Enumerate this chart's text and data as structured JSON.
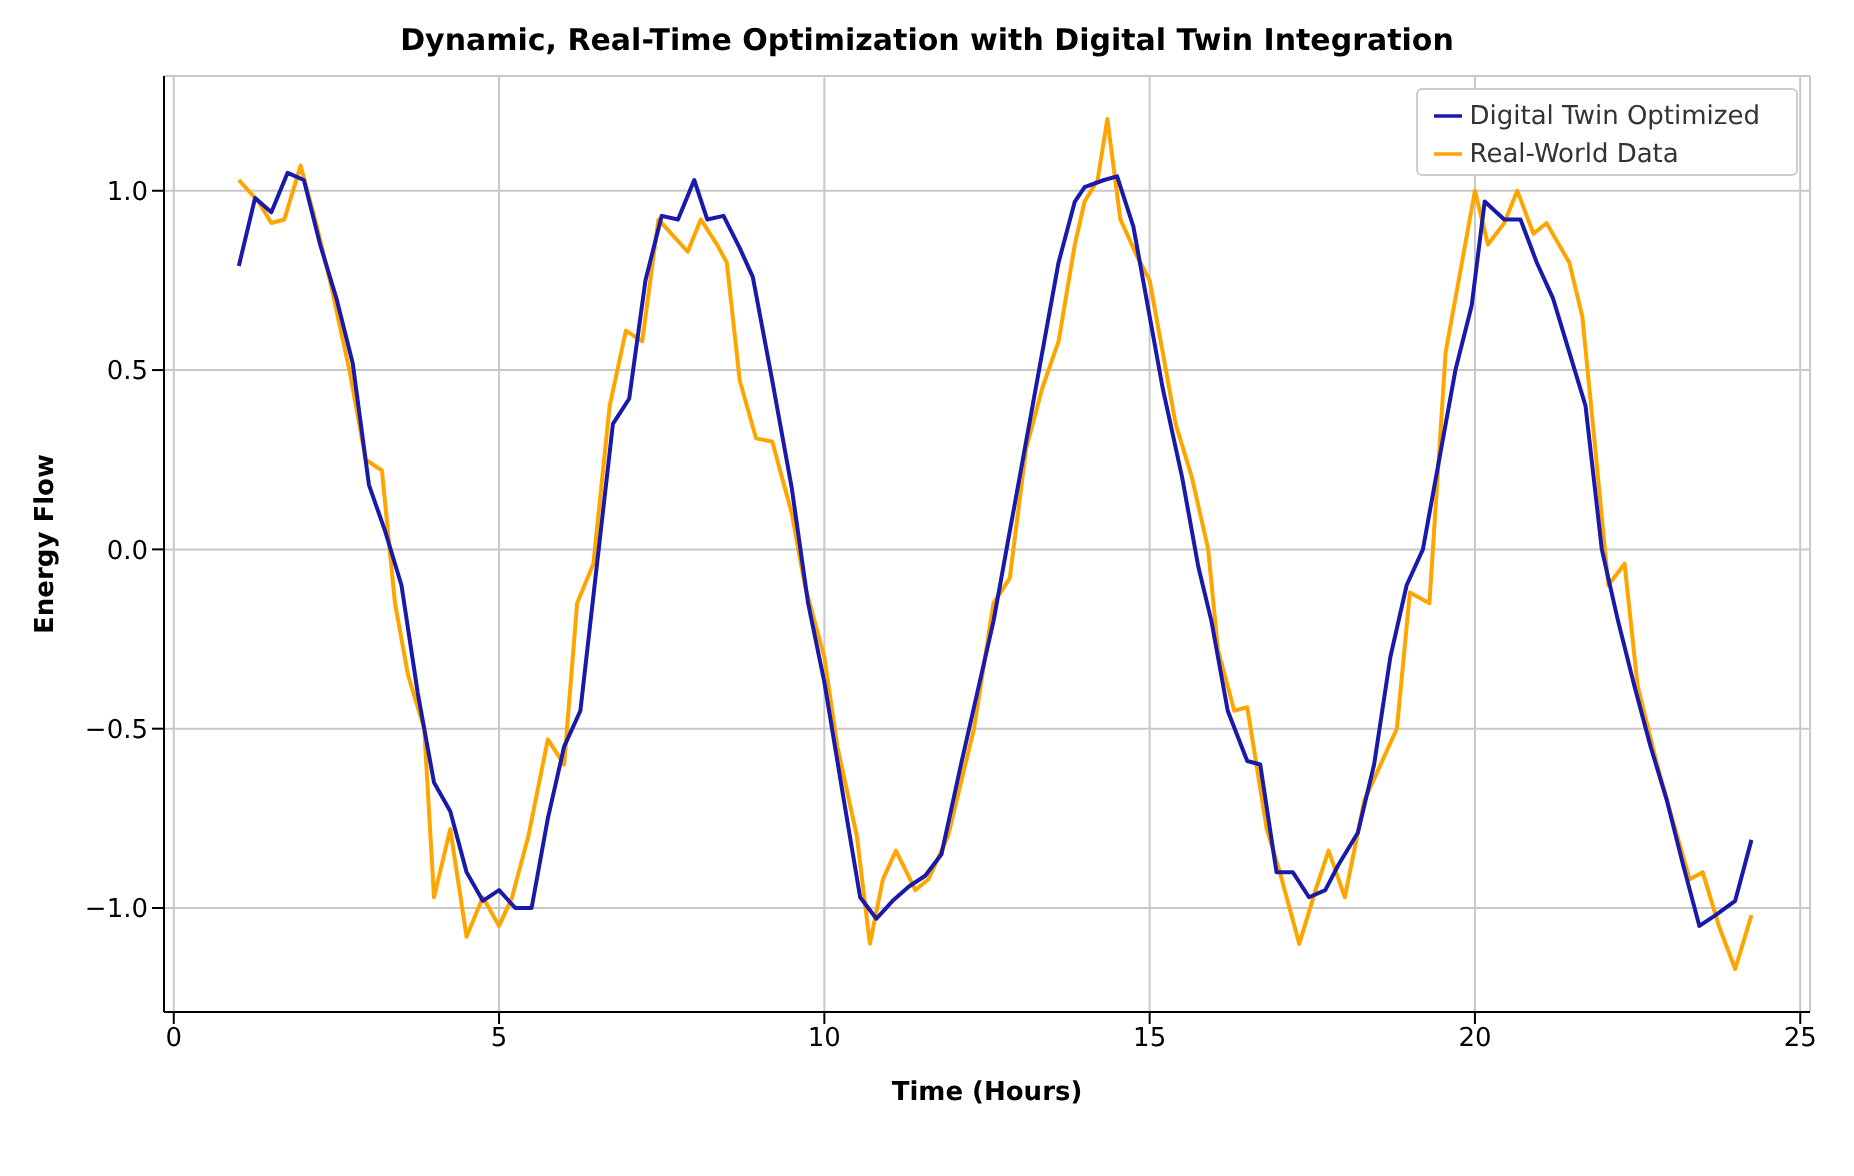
{
  "chart_data": {
    "type": "line",
    "title": "Dynamic, Real-Time Optimization with Digital Twin Integration",
    "xlabel": "Time (Hours)",
    "ylabel": "Energy Flow",
    "xlim": [
      -0.15,
      25.15
    ],
    "ylim": [
      -1.29,
      1.32
    ],
    "xticks": [
      0,
      5,
      10,
      15,
      20,
      25
    ],
    "yticks": [
      {
        "value": -1,
        "label": "−1.0"
      },
      -0.5,
      {
        "value": 0,
        "label": "0.0"
      },
      0.5,
      {
        "value": 1,
        "label": "1.0"
      }
    ],
    "grid": true,
    "legend": "top right",
    "marker": "none",
    "line_style": "solid",
    "series": [
      {
        "name": "Real-World Data",
        "color": "#ffa500",
        "x": [
          1.0,
          1.3,
          1.5,
          1.7,
          1.95,
          2.2,
          2.4,
          2.7,
          2.95,
          3.2,
          3.4,
          3.6,
          3.85,
          4.0,
          4.25,
          4.5,
          4.75,
          5.0,
          5.2,
          5.45,
          5.75,
          6.0,
          6.2,
          6.45,
          6.7,
          6.95,
          7.2,
          7.45,
          7.65,
          7.9,
          8.1,
          8.35,
          8.5,
          8.7,
          8.95,
          9.2,
          9.5,
          9.7,
          10.0,
          10.2,
          10.5,
          10.7,
          10.9,
          11.1,
          11.4,
          11.6,
          11.9,
          12.1,
          12.3,
          12.6,
          12.85,
          13.1,
          13.35,
          13.6,
          13.85,
          14.0,
          14.2,
          14.35,
          14.55,
          14.8,
          15.0,
          15.2,
          15.4,
          15.65,
          15.9,
          16.05,
          16.3,
          16.5,
          16.8,
          17.0,
          17.3,
          17.55,
          17.75,
          18.0,
          18.3,
          18.55,
          18.8,
          19.0,
          19.3,
          19.55,
          19.8,
          20.0,
          20.2,
          20.45,
          20.65,
          20.9,
          21.1,
          21.45,
          21.65,
          21.85,
          22.05,
          22.3,
          22.5,
          22.8,
          23.0,
          23.3,
          23.5,
          23.75,
          24.0,
          24.25
        ],
        "values": [
          1.03,
          0.97,
          0.91,
          0.92,
          1.07,
          0.9,
          0.75,
          0.5,
          0.25,
          0.22,
          -0.15,
          -0.35,
          -0.5,
          -0.97,
          -0.78,
          -1.08,
          -0.97,
          -1.05,
          -0.97,
          -0.8,
          -0.53,
          -0.6,
          -0.15,
          -0.04,
          0.4,
          0.61,
          0.58,
          0.92,
          0.88,
          0.83,
          0.92,
          0.85,
          0.8,
          0.47,
          0.31,
          0.3,
          0.1,
          -0.1,
          -0.3,
          -0.55,
          -0.8,
          -1.1,
          -0.92,
          -0.84,
          -0.95,
          -0.92,
          -0.8,
          -0.65,
          -0.5,
          -0.15,
          -0.08,
          0.28,
          0.45,
          0.58,
          0.85,
          0.97,
          1.03,
          1.2,
          0.92,
          0.82,
          0.75,
          0.55,
          0.35,
          0.2,
          0.0,
          -0.28,
          -0.45,
          -0.44,
          -0.78,
          -0.9,
          -1.1,
          -0.95,
          -0.84,
          -0.97,
          -0.7,
          -0.6,
          -0.5,
          -0.12,
          -0.15,
          0.55,
          0.8,
          1.0,
          0.85,
          0.91,
          1.0,
          0.88,
          0.91,
          0.8,
          0.65,
          0.28,
          -0.1,
          -0.04,
          -0.38,
          -0.6,
          -0.73,
          -0.92,
          -0.9,
          -1.05,
          -1.17,
          -1.02
        ]
      },
      {
        "name": "Digital Twin Optimized",
        "color": "#1a1aaa",
        "x": [
          1.0,
          1.25,
          1.5,
          1.75,
          2.0,
          2.25,
          2.5,
          2.75,
          3.0,
          3.25,
          3.5,
          3.75,
          4.0,
          4.25,
          4.5,
          4.75,
          5.0,
          5.25,
          5.5,
          5.75,
          6.0,
          6.25,
          6.5,
          6.75,
          7.0,
          7.25,
          7.5,
          7.75,
          8.0,
          8.2,
          8.45,
          8.7,
          8.9,
          9.2,
          9.5,
          9.75,
          10.0,
          10.3,
          10.55,
          10.8,
          11.05,
          11.3,
          11.55,
          11.8,
          12.1,
          12.35,
          12.6,
          12.85,
          13.1,
          13.35,
          13.6,
          13.85,
          14.0,
          14.3,
          14.5,
          14.75,
          15.0,
          15.2,
          15.5,
          15.75,
          15.95,
          16.2,
          16.5,
          16.7,
          16.95,
          17.2,
          17.45,
          17.7,
          17.9,
          18.2,
          18.45,
          18.7,
          18.95,
          19.2,
          19.5,
          19.7,
          19.95,
          20.15,
          20.45,
          20.7,
          20.95,
          21.2,
          21.45,
          21.7,
          21.95,
          22.2,
          22.45,
          22.7,
          22.95,
          23.2,
          23.45,
          23.7,
          24.0,
          24.25
        ],
        "values": [
          0.79,
          0.98,
          0.94,
          1.05,
          1.03,
          0.85,
          0.7,
          0.52,
          0.18,
          0.05,
          -0.1,
          -0.4,
          -0.65,
          -0.73,
          -0.9,
          -0.98,
          -0.95,
          -1.0,
          -1.0,
          -0.75,
          -0.55,
          -0.45,
          -0.05,
          0.35,
          0.42,
          0.75,
          0.93,
          0.92,
          1.03,
          0.92,
          0.93,
          0.84,
          0.76,
          0.47,
          0.17,
          -0.15,
          -0.37,
          -0.7,
          -0.97,
          -1.03,
          -0.98,
          -0.94,
          -0.91,
          -0.85,
          -0.6,
          -0.4,
          -0.2,
          0.05,
          0.3,
          0.55,
          0.8,
          0.97,
          1.01,
          1.03,
          1.04,
          0.9,
          0.65,
          0.45,
          0.2,
          -0.05,
          -0.2,
          -0.45,
          -0.59,
          -0.6,
          -0.9,
          -0.9,
          -0.97,
          -0.95,
          -0.88,
          -0.79,
          -0.6,
          -0.3,
          -0.1,
          0.0,
          0.3,
          0.5,
          0.68,
          0.97,
          0.92,
          0.92,
          0.8,
          0.7,
          0.55,
          0.4,
          0.0,
          -0.2,
          -0.38,
          -0.55,
          -0.7,
          -0.88,
          -1.05,
          -1.02,
          -0.98,
          -0.81
        ]
      }
    ]
  }
}
